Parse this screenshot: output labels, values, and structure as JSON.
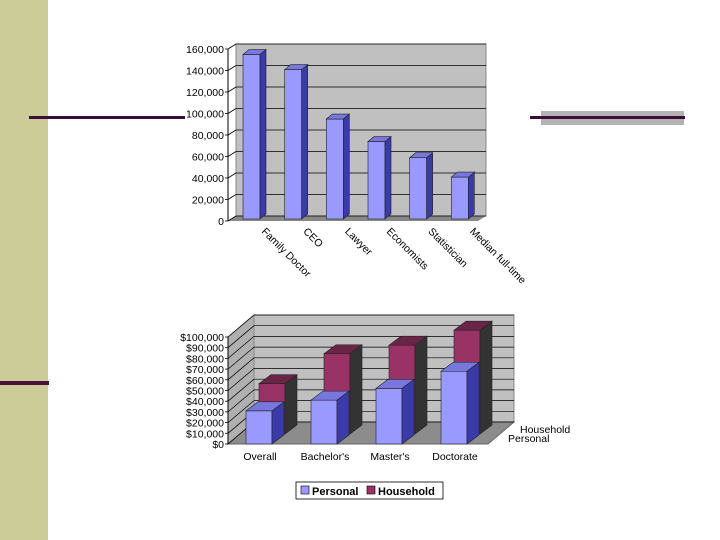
{
  "chart_data": [
    {
      "type": "bar",
      "categories": [
        "Family Doctor",
        "CEO",
        "Lawyer",
        "Economists",
        "Statistician",
        "Median full-time"
      ],
      "values": [
        153000,
        139000,
        93000,
        72000,
        57000,
        39000
      ],
      "ylim": [
        0,
        160000
      ],
      "yticks": [
        "160,000",
        "140,000",
        "120,000",
        "100,000",
        "80,000",
        "60,000",
        "40,000",
        "20,000",
        "0"
      ],
      "grid": true,
      "colors": {
        "bar_front": "#9999ff",
        "bar_side": "#3a3aa8",
        "plot_bg": "#c0c0c0",
        "floor": "#888888"
      }
    },
    {
      "type": "bar",
      "categories": [
        "Overall",
        "Bachelor's",
        "Master's",
        "Doctorate"
      ],
      "series": [
        {
          "name": "Personal",
          "values": [
            31000,
            41000,
            52000,
            68000
          ],
          "color": "#9999ff"
        },
        {
          "name": "Household",
          "values": [
            47000,
            75000,
            83000,
            97000
          ],
          "color": "#993366"
        }
      ],
      "ylim": [
        0,
        100000
      ],
      "yticks": [
        "$100,000",
        "$90,000",
        "$80,000",
        "$70,000",
        "$60,000",
        "$50,000",
        "$40,000",
        "$30,000",
        "$20,000",
        "$10,000",
        "$0"
      ],
      "depth_labels": [
        "Household",
        "Personal"
      ],
      "legend": {
        "placement": "bottom",
        "entries": [
          "Personal",
          "Household"
        ]
      },
      "grid": true
    }
  ]
}
